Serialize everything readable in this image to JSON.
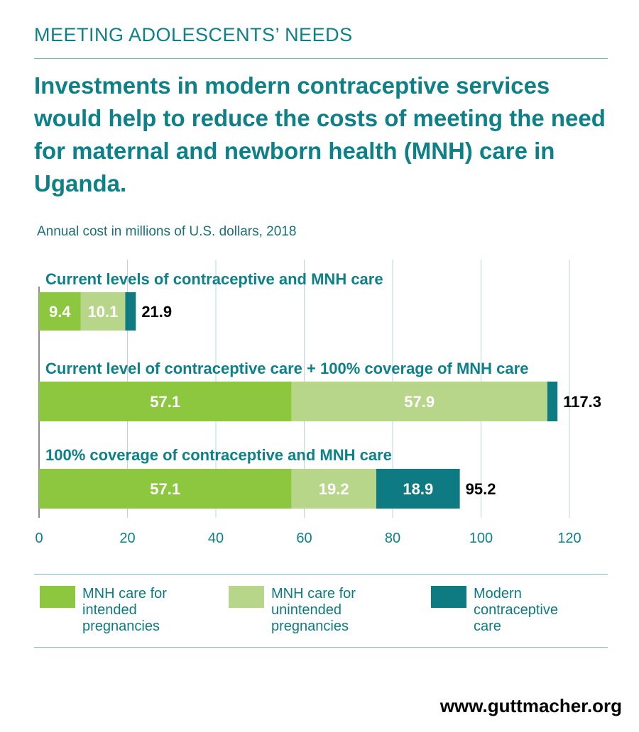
{
  "header": {
    "kicker": "MEETING ADOLESCENTS’ NEEDS",
    "headline": "Investments in modern contraceptive services would help to reduce the costs of meeting the need for maternal and newborn health (MNH) care in Uganda."
  },
  "colors": {
    "intended": "#8dc63f",
    "unintended": "#b8d68a",
    "contraceptive": "#0e7a82",
    "text": "#0e8087",
    "grid": "#b9d8dc"
  },
  "chart_data": {
    "type": "bar",
    "orientation": "horizontal",
    "stacked": true,
    "subtitle": "Annual cost in millions of U.S. dollars, 2018",
    "xlim": [
      0,
      120
    ],
    "ticks": [
      0,
      20,
      40,
      60,
      80,
      100,
      120
    ],
    "grid": true,
    "categories": [
      "Current levels of contraceptive and MNH care",
      "Current level of contraceptive care + 100% coverage of MNH care",
      "100% coverage of contraceptive and MNH care"
    ],
    "series": [
      {
        "name": "MNH care for intended pregnancies",
        "color": "#8dc63f",
        "values": [
          9.4,
          57.1,
          57.1
        ],
        "labels": [
          "9.4",
          "57.1",
          "57.1"
        ]
      },
      {
        "name": "MNH care for unintended pregnancies",
        "color": "#b8d68a",
        "values": [
          10.1,
          57.9,
          19.2
        ],
        "labels": [
          "10.1",
          "57.9",
          "19.2"
        ]
      },
      {
        "name": "Modern contraceptive care",
        "color": "#0e7a82",
        "values": [
          2.4,
          2.3,
          18.9
        ],
        "labels": [
          "",
          "",
          "18.9"
        ]
      }
    ],
    "totals": [
      "21.9",
      "117.3",
      "95.2"
    ]
  },
  "legend": {
    "items": [
      {
        "label": "MNH care for\nintended\npregnancies",
        "color": "#8dc63f"
      },
      {
        "label": "MNH care for\nunintended\npregnancies",
        "color": "#b8d68a"
      },
      {
        "label": "Modern\ncontraceptive\ncare",
        "color": "#0e7a82"
      }
    ]
  },
  "footer": {
    "url": "www.guttmacher.org"
  }
}
